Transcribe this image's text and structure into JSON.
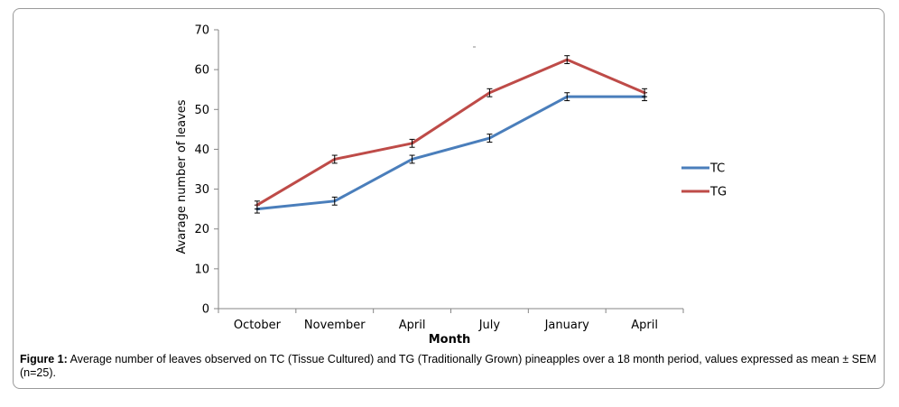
{
  "chart_data": {
    "type": "line",
    "categories": [
      "October",
      "November",
      "April",
      "July",
      "January",
      "April"
    ],
    "series": [
      {
        "name": "TC",
        "color": "#4a7ebb",
        "values": [
          25,
          27,
          37.5,
          42.8,
          53.2,
          53.2
        ],
        "errors": [
          1.0,
          1.0,
          1.0,
          1.0,
          1.0,
          1.0
        ]
      },
      {
        "name": "TG",
        "color": "#be4b48",
        "values": [
          26,
          37.5,
          41.5,
          54.2,
          62.5,
          54.2
        ],
        "errors": [
          1.0,
          1.0,
          1.0,
          1.0,
          1.0,
          1.0
        ]
      }
    ],
    "xlabel": "Month",
    "ylabel": "Avarage number of leaves",
    "ylim": [
      0,
      70
    ],
    "yticks": [
      0,
      10,
      20,
      30,
      40,
      50,
      60,
      70
    ],
    "grid": false,
    "legend_position": "right"
  },
  "caption": {
    "label": "Figure 1:",
    "text": " Average number of leaves observed on TC (Tissue Cultured) and TG (Traditionally Grown) pineapples over a 18 month period, values expressed as mean ± SEM (n=25)."
  }
}
